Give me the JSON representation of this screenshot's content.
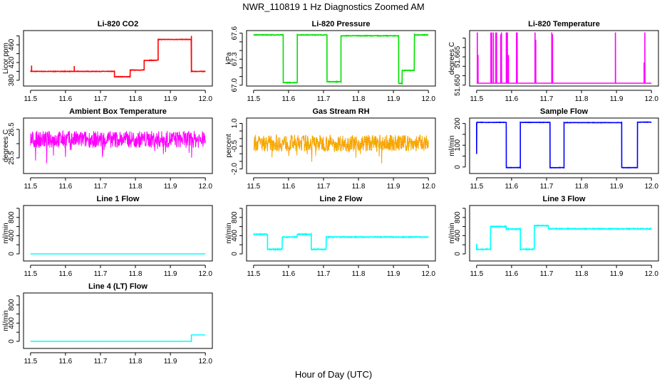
{
  "title": "NWR_110819  1 Hz Diagnostics Zoomed AM",
  "xlabel": "Hour of Day (UTC)",
  "chart_data": [
    {
      "type": "line",
      "title": "Li-820 CO2",
      "ylabel": "Licor ppm",
      "color": "#ff0000",
      "xlim": [
        11.48,
        12.02
      ],
      "ylim": [
        367,
        492
      ],
      "xticks": [
        "11.5",
        "11.6",
        "11.7",
        "11.8",
        "11.9",
        "12.0"
      ],
      "yticks": [
        380,
        400,
        420,
        440,
        460,
        480
      ],
      "yticklabels": [
        "380",
        "420",
        "460"
      ],
      "segments": [
        [
          11.5,
          11.74,
          400
        ],
        [
          11.74,
          11.785,
          388
        ],
        [
          11.785,
          11.825,
          403
        ],
        [
          11.825,
          11.865,
          425
        ],
        [
          11.865,
          11.96,
          472
        ],
        [
          11.96,
          12.0,
          400
        ]
      ],
      "spikes": [
        [
          11.503,
          413
        ],
        [
          11.625,
          412
        ],
        [
          11.96,
          480
        ]
      ],
      "noise": 1
    },
    {
      "type": "line",
      "title": "Li-820 Pressure",
      "ylabel": "kPa",
      "color": "#00e000",
      "xlim": [
        11.48,
        12.02
      ],
      "ylim": [
        66.99,
        67.63
      ],
      "xticks": [
        "11.5",
        "11.6",
        "11.7",
        "11.8",
        "11.9",
        "12.0"
      ],
      "yticks": [
        67.0,
        67.1,
        67.2,
        67.3,
        67.4,
        67.5,
        67.6
      ],
      "yticklabels": [
        "67.0",
        "67.3",
        "67.6"
      ],
      "segments": [
        [
          11.5,
          11.585,
          67.58
        ],
        [
          11.585,
          11.625,
          67.03
        ],
        [
          11.625,
          11.71,
          67.58
        ],
        [
          11.71,
          11.75,
          67.04
        ],
        [
          11.75,
          11.915,
          67.57
        ],
        [
          11.915,
          11.925,
          67.02
        ],
        [
          11.925,
          11.96,
          67.17
        ],
        [
          11.96,
          12.0,
          67.58
        ]
      ],
      "spikes": [],
      "noise": 0.006
    },
    {
      "type": "line",
      "title": "Li-820 Temperature",
      "ylabel": "degrees C",
      "color": "#ff00ff",
      "xlim": [
        11.48,
        12.02
      ],
      "ylim": [
        51.6495,
        51.679
      ],
      "xticks": [
        "11.5",
        "11.6",
        "11.7",
        "11.8",
        "11.9",
        "12.0"
      ],
      "yticks": [
        51.65,
        51.655,
        51.66,
        51.665,
        51.67,
        51.675
      ],
      "yticklabels": [
        "51.650",
        "51.665"
      ],
      "segments": [
        [
          11.5,
          12.0,
          51.651
        ]
      ],
      "spikes": [
        [
          11.502,
          51.678
        ],
        [
          11.504,
          51.666
        ],
        [
          11.541,
          51.678
        ],
        [
          11.543,
          51.678
        ],
        [
          11.548,
          51.678
        ],
        [
          11.555,
          51.678
        ],
        [
          11.557,
          51.678
        ],
        [
          11.569,
          51.677
        ],
        [
          11.571,
          51.678
        ],
        [
          11.585,
          51.678
        ],
        [
          11.588,
          51.678
        ],
        [
          11.591,
          51.666
        ],
        [
          11.614,
          51.678
        ],
        [
          11.616,
          51.678
        ],
        [
          11.667,
          51.678
        ],
        [
          11.669,
          51.674
        ],
        [
          11.715,
          51.678
        ],
        [
          11.717,
          51.677
        ],
        [
          11.897,
          51.678
        ],
        [
          11.979,
          51.662
        ],
        [
          11.981,
          51.678
        ]
      ],
      "noise": 0
    },
    {
      "type": "line",
      "title": "Ambient Box Temperature",
      "ylabel": "degrees C",
      "color": "#ff00ff",
      "xlim": [
        11.48,
        12.02
      ],
      "ylim": [
        24.95,
        26.9
      ],
      "xticks": [
        "11.5",
        "11.6",
        "11.7",
        "11.8",
        "11.9",
        "12.0"
      ],
      "yticks": [
        25.5,
        26.0,
        26.5
      ],
      "yticklabels": [
        "25.5",
        "26.5"
      ],
      "segments": [
        [
          11.5,
          12.0,
          26.15
        ]
      ],
      "spikes": [],
      "noise": 0.3,
      "dips": 0.6
    },
    {
      "type": "line",
      "title": "Gas Stream RH",
      "ylabel": "percent",
      "color": "#ff8c00",
      "color2": "#e8d000",
      "xlim": [
        11.48,
        12.02
      ],
      "ylim": [
        -2.3,
        1.35
      ],
      "xticks": [
        "11.5",
        "11.6",
        "11.7",
        "11.8",
        "11.9",
        "12.0"
      ],
      "yticks": [
        -2.0,
        -1.5,
        -1.0,
        -0.5,
        0,
        0.5,
        1.0
      ],
      "yticklabels": [
        "-2.0",
        "-0.5",
        "1.0"
      ],
      "segments": [
        [
          11.5,
          12.0,
          -0.3
        ]
      ],
      "spikes": [],
      "noise": 0.55,
      "dips": 1.0
    },
    {
      "type": "line",
      "title": "Sample Flow",
      "ylabel": "ml/min",
      "color": "#0000ff",
      "xlim": [
        11.48,
        12.02
      ],
      "ylim": [
        -30,
        225
      ],
      "xticks": [
        "11.5",
        "11.6",
        "11.7",
        "11.8",
        "11.9",
        "12.0"
      ],
      "yticks": [
        0,
        50,
        100,
        150,
        200
      ],
      "yticklabels": [
        "0",
        "100",
        "200"
      ],
      "segments": [
        [
          11.5,
          11.585,
          205
        ],
        [
          11.585,
          11.625,
          -3
        ],
        [
          11.625,
          11.71,
          205
        ],
        [
          11.71,
          11.75,
          -3
        ],
        [
          11.75,
          11.915,
          204
        ],
        [
          11.915,
          11.96,
          -3
        ],
        [
          11.96,
          12.0,
          206
        ]
      ],
      "spikes": [
        [
          11.5,
          60
        ]
      ],
      "noise": 1.5
    },
    {
      "type": "line",
      "title": "Line 1 Flow",
      "ylabel": "ml/min",
      "color": "#00ffff",
      "xlim": [
        11.48,
        12.02
      ],
      "ylim": [
        -156,
        1062
      ],
      "xticks": [
        "11.5",
        "11.6",
        "11.7",
        "11.8",
        "11.9",
        "12.0"
      ],
      "yticks": [
        0,
        200,
        400,
        600,
        800,
        1000
      ],
      "yticklabels": [
        "0",
        "400",
        "800"
      ],
      "segments": [
        [
          11.5,
          12.0,
          0
        ]
      ],
      "spikes": [],
      "noise": 0
    },
    {
      "type": "line",
      "title": "Line 2 Flow",
      "ylabel": "ml/min",
      "color": "#00ffff",
      "xlim": [
        11.48,
        12.02
      ],
      "ylim": [
        -156,
        1062
      ],
      "xticks": [
        "11.5",
        "11.6",
        "11.7",
        "11.8",
        "11.9",
        "12.0"
      ],
      "yticks": [
        0,
        200,
        400,
        600,
        800,
        1000
      ],
      "yticklabels": [
        "0",
        "400",
        "800"
      ],
      "segments": [
        [
          11.5,
          11.54,
          430
        ],
        [
          11.54,
          11.582,
          100
        ],
        [
          11.582,
          11.625,
          370
        ],
        [
          11.625,
          11.665,
          430
        ],
        [
          11.665,
          11.708,
          100
        ],
        [
          11.708,
          12.0,
          370
        ]
      ],
      "spikes": [],
      "noise": 18
    },
    {
      "type": "line",
      "title": "Line 3 Flow",
      "ylabel": "ml/min",
      "color": "#00ffff",
      "xlim": [
        11.48,
        12.02
      ],
      "ylim": [
        -156,
        1062
      ],
      "xticks": [
        "11.5",
        "11.6",
        "11.7",
        "11.8",
        "11.9",
        "12.0"
      ],
      "yticks": [
        0,
        200,
        400,
        600,
        800,
        1000
      ],
      "yticklabels": [
        "0",
        "400",
        "800"
      ],
      "segments": [
        [
          11.5,
          11.54,
          100
        ],
        [
          11.54,
          11.585,
          600
        ],
        [
          11.585,
          11.625,
          545
        ],
        [
          11.625,
          11.665,
          100
        ],
        [
          11.665,
          11.705,
          620
        ],
        [
          11.705,
          12.0,
          550
        ]
      ],
      "spikes": [
        [
          11.5,
          220
        ]
      ],
      "noise": 18
    },
    {
      "type": "line",
      "title": "Line 4 (LT) Flow",
      "ylabel": "ml/min",
      "color": "#00ffff",
      "xlim": [
        11.48,
        12.02
      ],
      "ylim": [
        -156,
        1062
      ],
      "xticks": [
        "11.5",
        "11.6",
        "11.7",
        "11.8",
        "11.9",
        "12.0"
      ],
      "yticks": [
        0,
        200,
        400,
        600,
        800,
        1000
      ],
      "yticklabels": [
        "0",
        "400",
        "800"
      ],
      "segments": [
        [
          11.5,
          11.96,
          0
        ],
        [
          11.96,
          12.0,
          140
        ]
      ],
      "spikes": [],
      "noise": 0
    }
  ]
}
